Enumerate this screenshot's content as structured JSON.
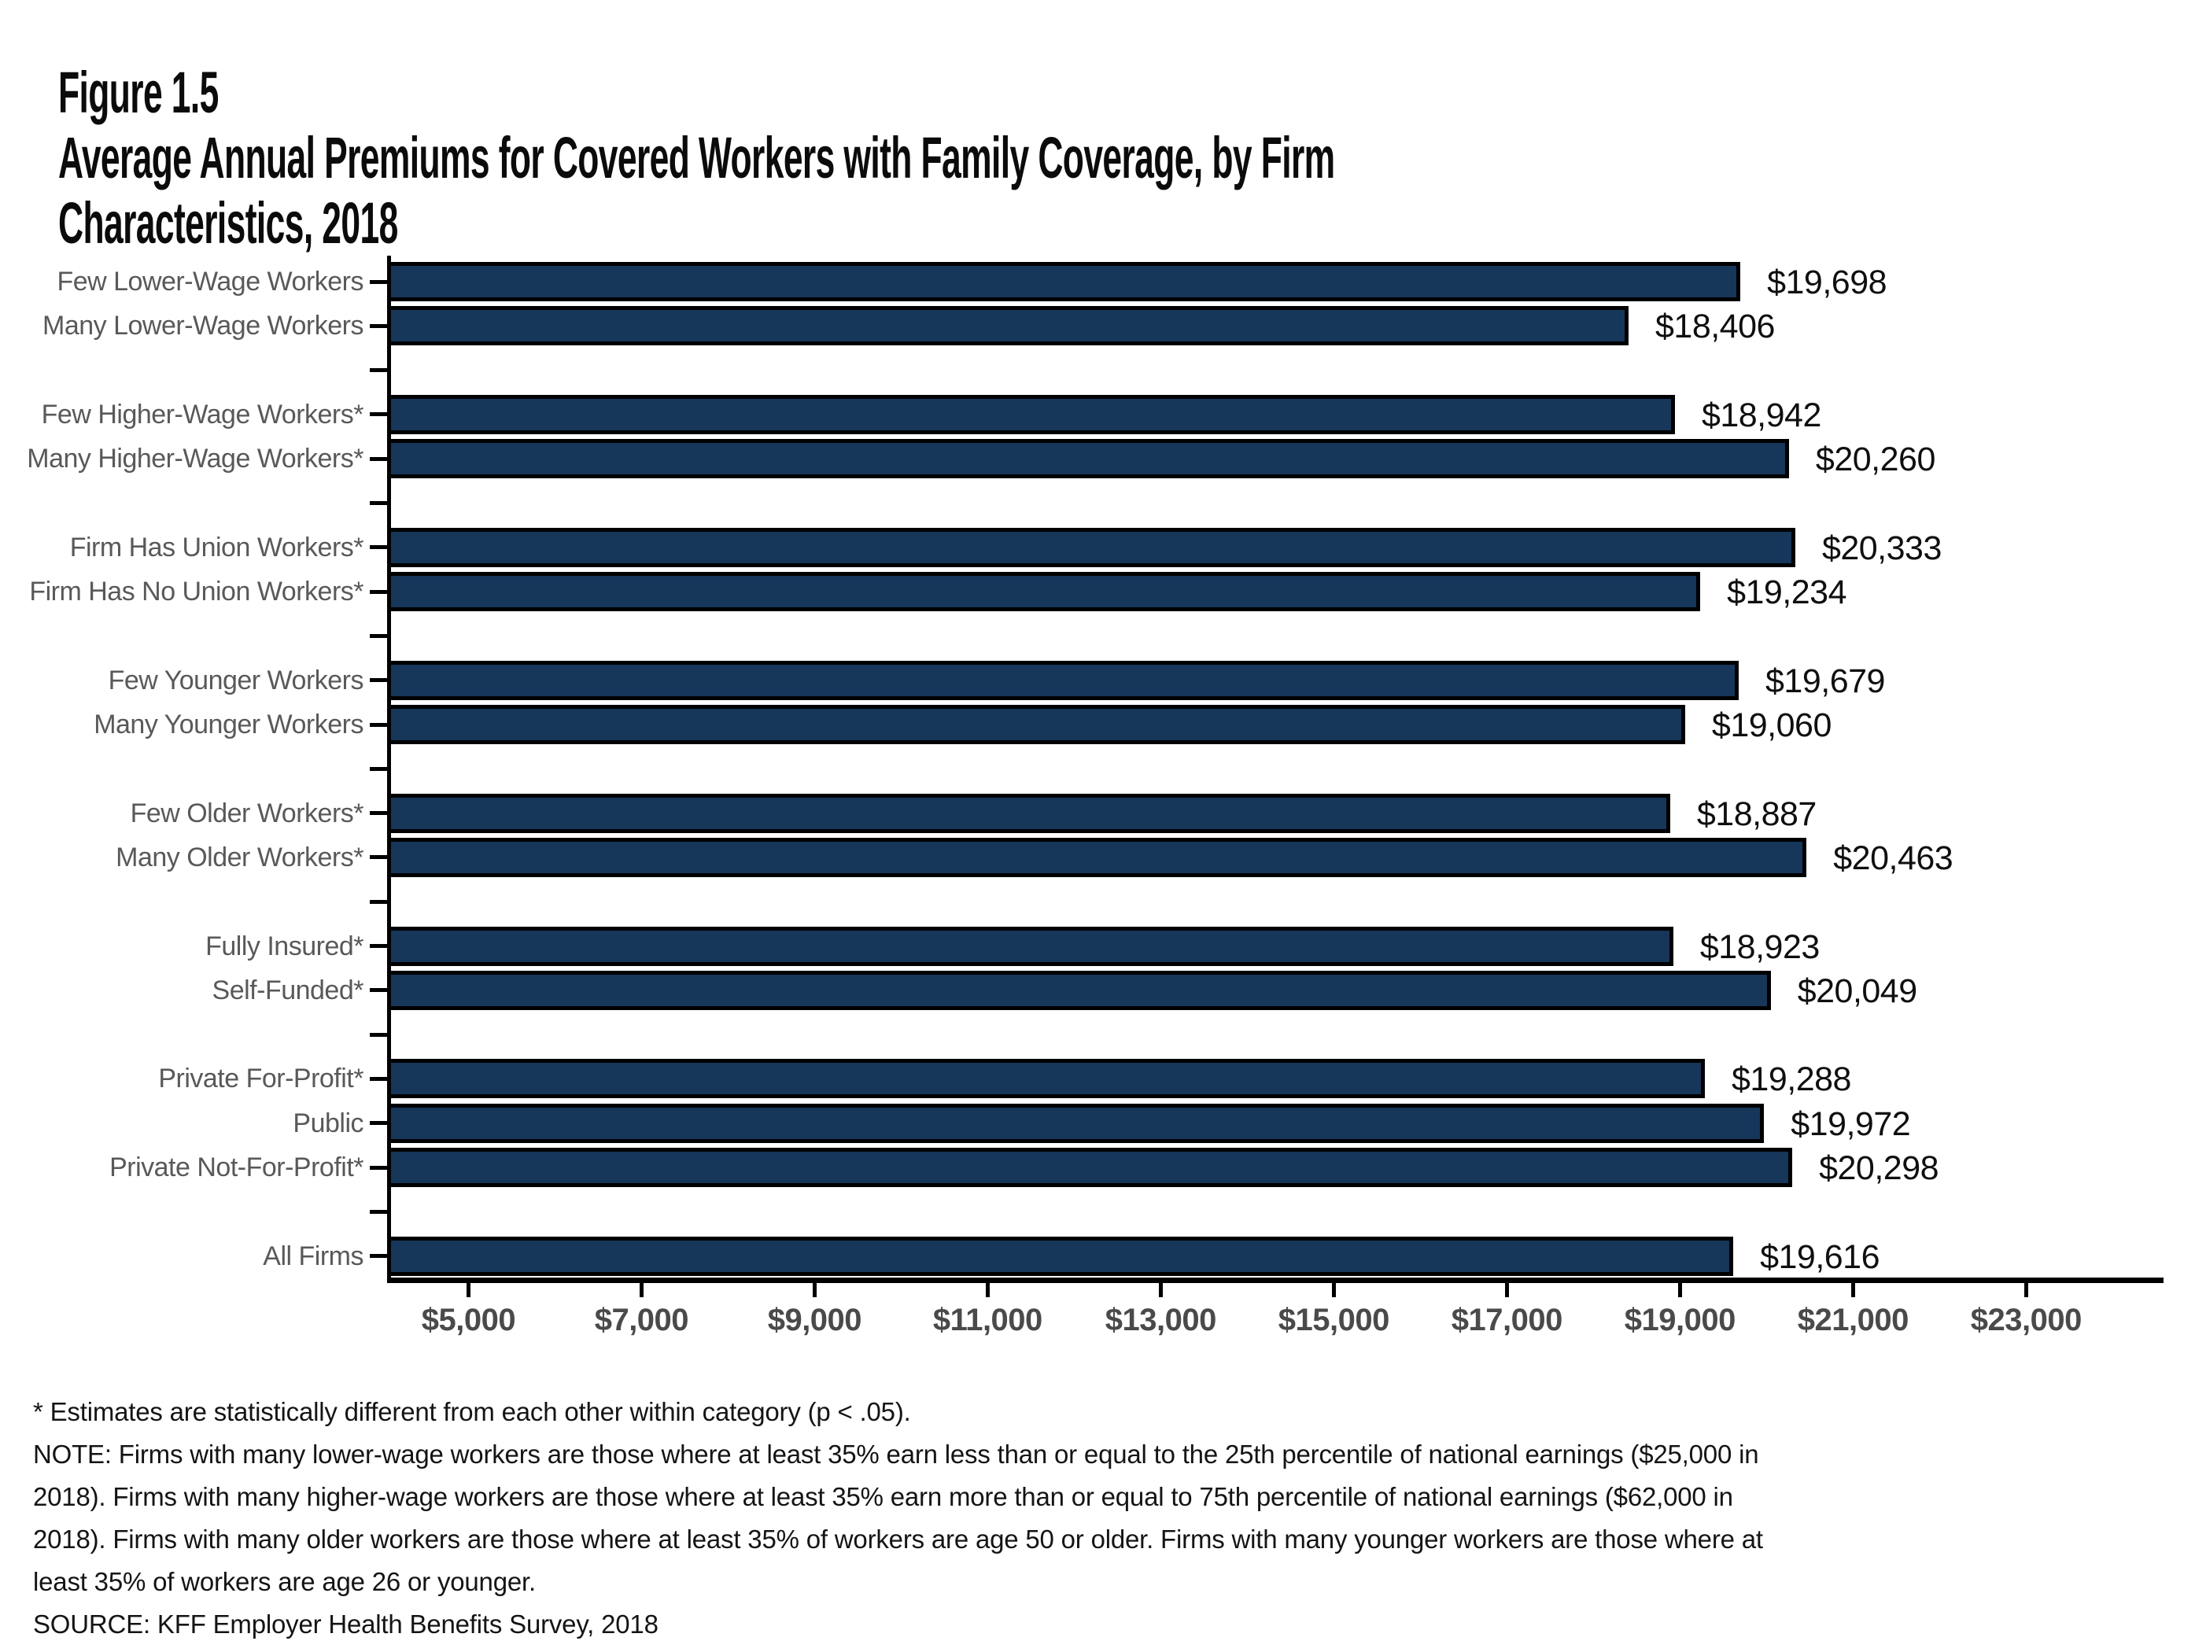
{
  "page": {
    "title_lines": [
      "Figure 1.5",
      "Average Annual Premiums for Covered Workers with Family Coverage, by Firm",
      "Characteristics, 2018"
    ]
  },
  "colors": {
    "bar_fill": "#16365A",
    "bar_border": "#000000",
    "axis": "#000000",
    "category_label": "#595959",
    "x_tick_label": "#4a4a4a",
    "value_label": "#0f0f0f"
  },
  "chart_data": {
    "type": "bar",
    "orientation": "horizontal",
    "title": "Average Annual Premiums for Covered Workers with Family Coverage, by Firm Characteristics, 2018",
    "xlabel": "",
    "ylabel": "",
    "grid": false,
    "legend": null,
    "xlim": [
      4060,
      24770
    ],
    "x_ticks": [
      {
        "value": 5000,
        "label": "$5,000"
      },
      {
        "value": 7000,
        "label": "$7,000"
      },
      {
        "value": 9000,
        "label": "$9,000"
      },
      {
        "value": 11000,
        "label": "$11,000"
      },
      {
        "value": 13000,
        "label": "$13,000"
      },
      {
        "value": 15000,
        "label": "$15,000"
      },
      {
        "value": 17000,
        "label": "$17,000"
      },
      {
        "value": 19000,
        "label": "$19,000"
      },
      {
        "value": 21000,
        "label": "$21,000"
      },
      {
        "value": 23000,
        "label": "$23,000"
      }
    ],
    "groups": [
      {
        "items": [
          {
            "category": "Few Lower-Wage Workers",
            "value": 19698,
            "value_label": "$19,698"
          },
          {
            "category": "Many Lower-Wage Workers",
            "value": 18406,
            "value_label": "$18,406"
          }
        ]
      },
      {
        "items": [
          {
            "category": "Few Higher-Wage Workers*",
            "value": 18942,
            "value_label": "$18,942"
          },
          {
            "category": "Many Higher-Wage Workers*",
            "value": 20260,
            "value_label": "$20,260"
          }
        ]
      },
      {
        "items": [
          {
            "category": "Firm Has Union Workers*",
            "value": 20333,
            "value_label": "$20,333"
          },
          {
            "category": "Firm Has No Union Workers*",
            "value": 19234,
            "value_label": "$19,234"
          }
        ]
      },
      {
        "items": [
          {
            "category": "Few Younger Workers",
            "value": 19679,
            "value_label": "$19,679"
          },
          {
            "category": "Many Younger Workers",
            "value": 19060,
            "value_label": "$19,060"
          }
        ]
      },
      {
        "items": [
          {
            "category": "Few Older Workers*",
            "value": 18887,
            "value_label": "$18,887"
          },
          {
            "category": "Many Older Workers*",
            "value": 20463,
            "value_label": "$20,463"
          }
        ]
      },
      {
        "items": [
          {
            "category": "Fully Insured*",
            "value": 18923,
            "value_label": "$18,923"
          },
          {
            "category": "Self-Funded*",
            "value": 20049,
            "value_label": "$20,049"
          }
        ]
      },
      {
        "items": [
          {
            "category": "Private For-Profit*",
            "value": 19288,
            "value_label": "$19,288"
          },
          {
            "category": "Public",
            "value": 19972,
            "value_label": "$19,972"
          },
          {
            "category": "Private Not-For-Profit*",
            "value": 20298,
            "value_label": "$20,298"
          }
        ]
      },
      {
        "items": [
          {
            "category": "All Firms",
            "value": 19616,
            "value_label": "$19,616"
          }
        ]
      }
    ]
  },
  "footnotes": {
    "lines": [
      "* Estimates are statistically different from each other within category (p < .05).",
      "NOTE: Firms with many lower-wage workers are those where at least 35% earn less than or equal to the 25th percentile of national earnings ($25,000 in",
      "2018). Firms with many higher-wage workers are those where at least 35% earn more than or equal to 75th percentile of national earnings ($62,000 in",
      "2018). Firms with many older workers are those where at least 35% of workers are age 50 or older. Firms with many younger workers are those where at",
      "least 35% of workers are age 26 or younger.",
      "SOURCE: KFF Employer Health Benefits Survey, 2018"
    ]
  }
}
